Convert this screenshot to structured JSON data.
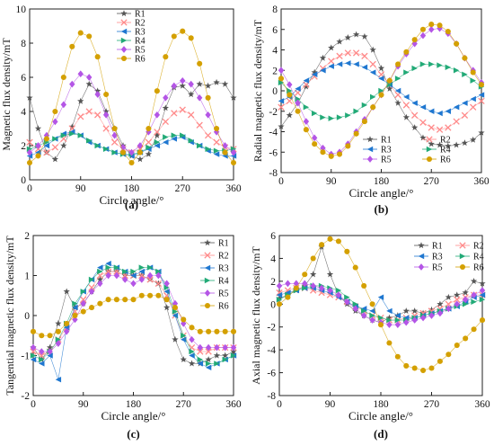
{
  "series_style": {
    "names": [
      "R1",
      "R2",
      "R3",
      "R4",
      "R5",
      "R6"
    ],
    "colors": [
      "#555555",
      "#ff8a8a",
      "#1f77d0",
      "#22aa77",
      "#b455e6",
      "#d4a000"
    ],
    "markers": [
      "star",
      "cross",
      "tri-left",
      "tri-right",
      "diamond",
      "circle"
    ]
  },
  "chart_data": [
    {
      "type": "line",
      "panel_label": "(a)",
      "xlabel": "Circle angle/°",
      "ylabel": "Magnetic flux density/mT",
      "xlim": [
        0,
        360
      ],
      "ylim": [
        0,
        10
      ],
      "xticks": [
        0,
        90,
        180,
        270,
        360
      ],
      "yticks": [
        0,
        2,
        4,
        6,
        8,
        10
      ],
      "legend": "top-center, 1 column",
      "x": [
        0,
        15,
        30,
        45,
        60,
        75,
        90,
        105,
        120,
        135,
        150,
        165,
        180,
        195,
        210,
        225,
        240,
        255,
        270,
        285,
        300,
        315,
        330,
        345,
        360
      ],
      "series": [
        {
          "name": "R1",
          "values": [
            4.8,
            3.0,
            1.6,
            1.2,
            2.0,
            3.1,
            4.6,
            5.6,
            5.2,
            4.0,
            3.0,
            2.0,
            1.4,
            1.2,
            1.5,
            2.6,
            4.2,
            5.4,
            5.5,
            5.0,
            5.6,
            5.5,
            5.7,
            5.6,
            4.8
          ]
        },
        {
          "name": "R2",
          "values": [
            2.2,
            1.8,
            1.6,
            1.9,
            2.4,
            3.0,
            3.7,
            4.0,
            3.8,
            3.0,
            2.2,
            1.8,
            1.6,
            1.8,
            2.2,
            2.8,
            3.4,
            3.9,
            4.1,
            3.8,
            3.2,
            2.6,
            2.2,
            1.9,
            1.8
          ]
        },
        {
          "name": "R3",
          "values": [
            1.4,
            1.6,
            2.0,
            2.4,
            2.7,
            2.8,
            2.6,
            2.2,
            2.0,
            1.8,
            1.6,
            1.5,
            1.4,
            1.6,
            1.8,
            2.0,
            2.2,
            2.4,
            2.5,
            2.2,
            2.0,
            1.7,
            1.5,
            1.4,
            1.4
          ]
        },
        {
          "name": "R4",
          "values": [
            1.8,
            2.0,
            2.2,
            2.4,
            2.6,
            2.7,
            2.6,
            2.3,
            2.0,
            1.8,
            1.6,
            1.5,
            1.5,
            1.6,
            1.9,
            2.2,
            2.5,
            2.6,
            2.6,
            2.3,
            2.0,
            1.8,
            1.7,
            1.7,
            1.8
          ]
        },
        {
          "name": "R5",
          "values": [
            1.6,
            2.0,
            2.6,
            3.4,
            4.4,
            5.6,
            6.2,
            6.0,
            5.0,
            3.8,
            2.6,
            1.9,
            1.6,
            2.0,
            2.8,
            3.8,
            4.8,
            5.5,
            5.8,
            5.6,
            4.8,
            3.8,
            2.8,
            2.0,
            1.6
          ]
        },
        {
          "name": "R6",
          "values": [
            1.0,
            1.4,
            2.4,
            4.0,
            6.0,
            7.8,
            8.6,
            8.4,
            7.2,
            5.0,
            3.0,
            1.6,
            1.0,
            1.6,
            3.0,
            5.2,
            7.2,
            8.4,
            8.7,
            8.3,
            6.8,
            4.8,
            3.0,
            1.6,
            1.0
          ]
        }
      ]
    },
    {
      "type": "line",
      "panel_label": "(b)",
      "xlabel": "Circle angle/°",
      "ylabel": "Radial magnetic flux density/mT",
      "xlim": [
        0,
        360
      ],
      "ylim": [
        -8,
        8
      ],
      "xticks": [
        0,
        90,
        180,
        270,
        360
      ],
      "yticks": [
        -8,
        -6,
        -4,
        -2,
        0,
        2,
        4,
        6,
        8
      ],
      "legend": "bottom-center, 2 columns",
      "x": [
        0,
        15,
        30,
        45,
        60,
        75,
        90,
        105,
        120,
        135,
        150,
        165,
        180,
        195,
        210,
        225,
        240,
        255,
        270,
        285,
        300,
        315,
        330,
        345,
        360
      ],
      "series": [
        {
          "name": "R1",
          "values": [
            -3.5,
            -2.4,
            -1.2,
            0.4,
            1.8,
            3.2,
            4.2,
            4.8,
            5.2,
            5.5,
            5.3,
            4.0,
            2.2,
            0.2,
            -1.2,
            -2.6,
            -3.6,
            -4.6,
            -5.2,
            -5.3,
            -5.4,
            -5.3,
            -5.1,
            -4.8,
            -4.1
          ]
        },
        {
          "name": "R2",
          "values": [
            -1.6,
            -1.0,
            -0.2,
            0.6,
            1.4,
            2.2,
            2.9,
            3.4,
            3.7,
            3.7,
            3.4,
            2.6,
            1.6,
            0.6,
            -0.4,
            -1.4,
            -2.4,
            -3.1,
            -3.6,
            -3.8,
            -3.6,
            -3.0,
            -2.4,
            -1.6,
            -1.0
          ]
        },
        {
          "name": "R3",
          "values": [
            -1.0,
            -0.6,
            0.2,
            1.0,
            1.6,
            2.0,
            2.4,
            2.6,
            2.7,
            2.6,
            2.3,
            1.8,
            1.2,
            0.6,
            0.0,
            -0.6,
            -1.2,
            -1.6,
            -2.0,
            -2.2,
            -2.0,
            -1.6,
            -1.2,
            -0.8,
            -0.4
          ]
        },
        {
          "name": "R4",
          "values": [
            0.8,
            0.0,
            -0.8,
            -1.6,
            -2.2,
            -2.6,
            -2.7,
            -2.6,
            -2.4,
            -2.0,
            -1.4,
            -0.6,
            0.0,
            0.6,
            1.2,
            1.8,
            2.2,
            2.6,
            2.6,
            2.5,
            2.3,
            2.0,
            1.6,
            1.0,
            0.4
          ]
        },
        {
          "name": "R5",
          "values": [
            2.0,
            0.6,
            -1.2,
            -3.0,
            -4.6,
            -5.6,
            -6.2,
            -6.0,
            -5.2,
            -4.0,
            -2.8,
            -1.6,
            -0.4,
            1.0,
            2.4,
            3.6,
            4.6,
            5.4,
            6.0,
            6.1,
            5.6,
            4.6,
            3.2,
            2.0,
            0.8
          ]
        },
        {
          "name": "R6",
          "values": [
            1.2,
            -0.4,
            -2.0,
            -3.8,
            -5.2,
            -6.0,
            -6.4,
            -6.2,
            -5.4,
            -4.2,
            -3.0,
            -1.6,
            -0.4,
            1.0,
            2.6,
            3.8,
            5.0,
            6.0,
            6.5,
            6.4,
            5.8,
            4.6,
            3.2,
            1.8,
            0.6
          ]
        }
      ]
    },
    {
      "type": "line",
      "panel_label": "(c)",
      "xlabel": "Circle angle/°",
      "ylabel": "Tangential magnetic flux density/mT",
      "xlim": [
        0,
        360
      ],
      "ylim": [
        -2,
        2
      ],
      "xticks": [
        0,
        90,
        180,
        270,
        360
      ],
      "yticks": [
        -2,
        -1,
        0,
        1,
        2
      ],
      "legend": "right, 1 column",
      "x": [
        0,
        15,
        30,
        45,
        60,
        75,
        90,
        105,
        120,
        135,
        150,
        165,
        180,
        195,
        210,
        225,
        240,
        255,
        270,
        285,
        300,
        315,
        330,
        345,
        360
      ],
      "series": [
        {
          "name": "R1",
          "values": [
            -0.8,
            -1.1,
            -0.8,
            -0.2,
            0.6,
            0.2,
            0.3,
            0.6,
            0.9,
            1.1,
            1.1,
            1.0,
            1.0,
            1.0,
            0.9,
            0.8,
            0.2,
            -0.6,
            -1.1,
            -1.2,
            -1.2,
            -1.1,
            -1.0,
            -1.0,
            -0.9
          ]
        },
        {
          "name": "R2",
          "values": [
            -0.9,
            -1.0,
            -0.9,
            -0.6,
            -0.3,
            0.1,
            0.4,
            0.7,
            1.0,
            1.1,
            1.1,
            1.0,
            1.0,
            1.0,
            0.9,
            0.8,
            0.5,
            0.0,
            -0.5,
            -0.8,
            -0.9,
            -0.9,
            -0.8,
            -0.8,
            -0.8
          ]
        },
        {
          "name": "R3",
          "values": [
            -1.1,
            -1.2,
            -1.0,
            -1.6,
            -0.3,
            0.2,
            0.6,
            0.9,
            1.2,
            1.3,
            1.2,
            1.1,
            1.0,
            1.1,
            1.2,
            1.1,
            0.6,
            0.0,
            -0.6,
            -1.0,
            -1.2,
            -1.3,
            -1.2,
            -1.1,
            -1.0
          ]
        },
        {
          "name": "R4",
          "values": [
            -1.0,
            -1.1,
            -0.9,
            -0.6,
            -0.2,
            0.3,
            0.6,
            0.9,
            1.1,
            1.2,
            1.2,
            1.1,
            1.1,
            1.2,
            1.2,
            1.1,
            0.7,
            0.1,
            -0.5,
            -0.9,
            -1.1,
            -1.2,
            -1.2,
            -1.1,
            -1.0
          ]
        },
        {
          "name": "R5",
          "values": [
            -0.8,
            -0.9,
            -0.9,
            -0.7,
            -0.4,
            -0.1,
            0.3,
            0.6,
            0.8,
            1.0,
            1.0,
            0.9,
            0.8,
            0.9,
            1.0,
            1.0,
            0.8,
            0.3,
            -0.2,
            -0.6,
            -0.8,
            -0.8,
            -0.8,
            -0.8,
            -0.8
          ]
        },
        {
          "name": "R6",
          "values": [
            -0.4,
            -0.5,
            -0.5,
            -0.4,
            -0.2,
            0.0,
            0.1,
            0.2,
            0.3,
            0.4,
            0.4,
            0.4,
            0.4,
            0.5,
            0.5,
            0.5,
            0.4,
            0.2,
            -0.1,
            -0.3,
            -0.4,
            -0.4,
            -0.4,
            -0.4,
            -0.4
          ]
        }
      ]
    },
    {
      "type": "line",
      "panel_label": "(d)",
      "xlabel": "Circle angle/°",
      "ylabel": "Axial magnetic flux density/mT",
      "xlim": [
        0,
        360
      ],
      "ylim": [
        -8,
        6
      ],
      "xticks": [
        0,
        90,
        180,
        270,
        360
      ],
      "yticks": [
        -8,
        -6,
        -4,
        -2,
        0,
        2,
        4,
        6
      ],
      "legend": "top-right, 2 columns",
      "x": [
        0,
        15,
        30,
        45,
        60,
        75,
        90,
        105,
        120,
        135,
        150,
        165,
        180,
        195,
        210,
        225,
        240,
        255,
        270,
        285,
        300,
        315,
        330,
        345,
        360
      ],
      "series": [
        {
          "name": "R1",
          "values": [
            0.5,
            0.8,
            1.2,
            1.6,
            2.6,
            5.0,
            2.6,
            0.8,
            0.0,
            -0.6,
            -1.0,
            -1.4,
            -1.6,
            -1.2,
            -1.0,
            -0.6,
            -0.6,
            -0.8,
            -0.5,
            0.0,
            0.6,
            0.8,
            1.0,
            2.0,
            1.8
          ]
        },
        {
          "name": "R2",
          "values": [
            1.0,
            1.2,
            1.4,
            1.4,
            1.2,
            1.0,
            0.8,
            0.6,
            0.2,
            -0.2,
            -0.6,
            -1.0,
            -1.2,
            -1.4,
            -1.4,
            -1.2,
            -1.0,
            -0.8,
            -0.6,
            -0.4,
            0.0,
            0.4,
            0.6,
            0.8,
            0.8
          ]
        },
        {
          "name": "R3",
          "values": [
            0.8,
            1.0,
            1.2,
            1.4,
            1.4,
            1.2,
            1.0,
            0.6,
            0.2,
            -0.2,
            -0.4,
            -0.6,
            0.6,
            -0.6,
            -1.0,
            -1.2,
            -1.2,
            -1.0,
            -0.8,
            -0.6,
            -0.4,
            -0.2,
            0.2,
            0.6,
            0.8
          ]
        },
        {
          "name": "R4",
          "values": [
            0.4,
            0.8,
            1.2,
            1.4,
            1.6,
            1.6,
            1.4,
            1.2,
            0.6,
            0.0,
            -0.6,
            -1.0,
            -1.2,
            -1.4,
            -1.4,
            -1.4,
            -1.2,
            -1.0,
            -0.8,
            -0.6,
            -0.4,
            -0.2,
            0.0,
            0.2,
            0.4
          ]
        },
        {
          "name": "R5",
          "values": [
            1.6,
            1.8,
            1.8,
            1.8,
            1.6,
            1.4,
            1.2,
            0.8,
            0.2,
            -0.4,
            -1.0,
            -1.4,
            -1.6,
            -1.8,
            -1.8,
            -1.6,
            -1.4,
            -1.2,
            -1.0,
            -0.8,
            -0.4,
            0.0,
            0.4,
            0.8,
            1.2
          ]
        },
        {
          "name": "R6",
          "values": [
            0.0,
            0.6,
            1.4,
            2.6,
            4.0,
            5.2,
            5.7,
            5.5,
            4.6,
            3.2,
            1.6,
            0.0,
            -1.8,
            -3.4,
            -4.6,
            -5.4,
            -5.6,
            -5.8,
            -5.6,
            -5.0,
            -4.4,
            -3.6,
            -3.0,
            -2.2,
            -1.4
          ]
        }
      ]
    }
  ]
}
